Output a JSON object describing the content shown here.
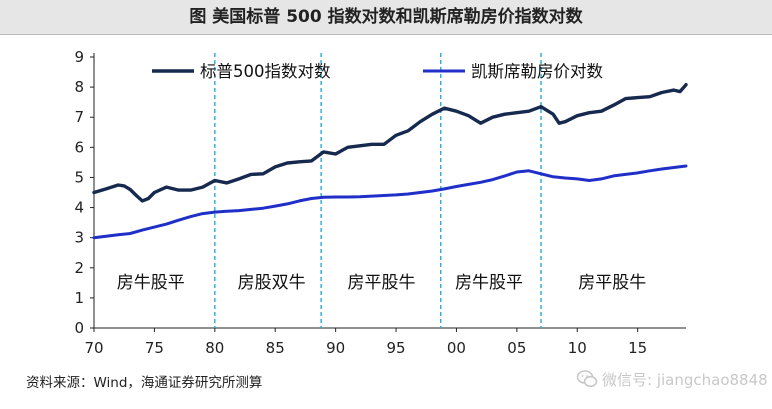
{
  "header": {
    "title": "图  美国标普 500 指数对数和凯斯席勒房价指数对数"
  },
  "footer": {
    "source": "资料来源：Wind，海通证券研究所测算"
  },
  "watermark": {
    "icon": "wechat-icon",
    "text": "微信号: jiangchao8848"
  },
  "chart_data": {
    "type": "line",
    "title": "美国标普 500 指数对数和凯斯席勒房价指数对数",
    "xlabel": "",
    "ylabel": "",
    "xlim": [
      1970,
      2019
    ],
    "ylim": [
      0,
      9
    ],
    "yticks": [
      0,
      1,
      2,
      3,
      4,
      5,
      6,
      7,
      8,
      9
    ],
    "xticks": [
      {
        "value": 1970,
        "label": "70"
      },
      {
        "value": 1975,
        "label": "75"
      },
      {
        "value": 1980,
        "label": "80"
      },
      {
        "value": 1985,
        "label": "85"
      },
      {
        "value": 1990,
        "label": "90"
      },
      {
        "value": 1995,
        "label": "95"
      },
      {
        "value": 2000,
        "label": "00"
      },
      {
        "value": 2005,
        "label": "05"
      },
      {
        "value": 2010,
        "label": "10"
      },
      {
        "value": 2015,
        "label": "15"
      }
    ],
    "grid": false,
    "legend_position": "top",
    "series": [
      {
        "name": "标普500指数对数",
        "color": "#16294f",
        "x": [
          1970,
          1971,
          1972,
          1972.5,
          1973,
          1973.5,
          1974,
          1974.5,
          1975,
          1976,
          1977,
          1978,
          1979,
          1980,
          1981,
          1982,
          1983,
          1984,
          1985,
          1986,
          1987,
          1988,
          1989,
          1990,
          1991,
          1992,
          1993,
          1994,
          1995,
          1996,
          1997,
          1998,
          1999,
          2000,
          2001,
          2002,
          2003,
          2004,
          2005,
          2006,
          2007,
          2008,
          2008.5,
          2009,
          2010,
          2011,
          2012,
          2013,
          2014,
          2015,
          2016,
          2017,
          2018,
          2018.5,
          2019
        ],
        "values": [
          4.5,
          4.62,
          4.75,
          4.72,
          4.6,
          4.4,
          4.22,
          4.3,
          4.5,
          4.68,
          4.58,
          4.58,
          4.68,
          4.9,
          4.82,
          4.95,
          5.1,
          5.12,
          5.35,
          5.48,
          5.52,
          5.55,
          5.85,
          5.78,
          6.0,
          6.05,
          6.1,
          6.1,
          6.4,
          6.55,
          6.85,
          7.1,
          7.3,
          7.2,
          7.05,
          6.8,
          7.0,
          7.1,
          7.15,
          7.2,
          7.35,
          7.1,
          6.8,
          6.85,
          7.05,
          7.15,
          7.2,
          7.4,
          7.62,
          7.65,
          7.68,
          7.82,
          7.9,
          7.85,
          8.08
        ]
      },
      {
        "name": "凯斯席勒房价对数",
        "color": "#1f2fc8",
        "x": [
          1970,
          1971,
          1972,
          1973,
          1974,
          1975,
          1976,
          1977,
          1978,
          1979,
          1980,
          1981,
          1982,
          1983,
          1984,
          1985,
          1986,
          1987,
          1988,
          1989,
          1990,
          1991,
          1992,
          1993,
          1994,
          1995,
          1996,
          1997,
          1998,
          1999,
          2000,
          2001,
          2002,
          2003,
          2004,
          2005,
          2006,
          2007,
          2008,
          2009,
          2010,
          2011,
          2012,
          2013,
          2014,
          2015,
          2016,
          2017,
          2018,
          2019
        ],
        "values": [
          3.0,
          3.05,
          3.1,
          3.14,
          3.25,
          3.35,
          3.45,
          3.58,
          3.7,
          3.8,
          3.85,
          3.88,
          3.9,
          3.94,
          3.98,
          4.05,
          4.12,
          4.22,
          4.3,
          4.34,
          4.35,
          4.35,
          4.36,
          4.38,
          4.4,
          4.42,
          4.45,
          4.5,
          4.55,
          4.62,
          4.7,
          4.77,
          4.84,
          4.93,
          5.05,
          5.18,
          5.22,
          5.12,
          5.02,
          4.98,
          4.95,
          4.9,
          4.95,
          5.05,
          5.1,
          5.15,
          5.22,
          5.28,
          5.33,
          5.38
        ]
      }
    ],
    "regime_dividers": [
      1980.0,
      1988.8,
      1998.7,
      2007.0
    ],
    "regimes": [
      {
        "label": "房牛股平",
        "center": 1974.7
      },
      {
        "label": "房股双牛",
        "center": 1984.7
      },
      {
        "label": "房平股牛",
        "center": 1993.8
      },
      {
        "label": "房牛股平",
        "center": 2002.7
      },
      {
        "label": "房平股牛",
        "center": 2012.9
      }
    ]
  }
}
